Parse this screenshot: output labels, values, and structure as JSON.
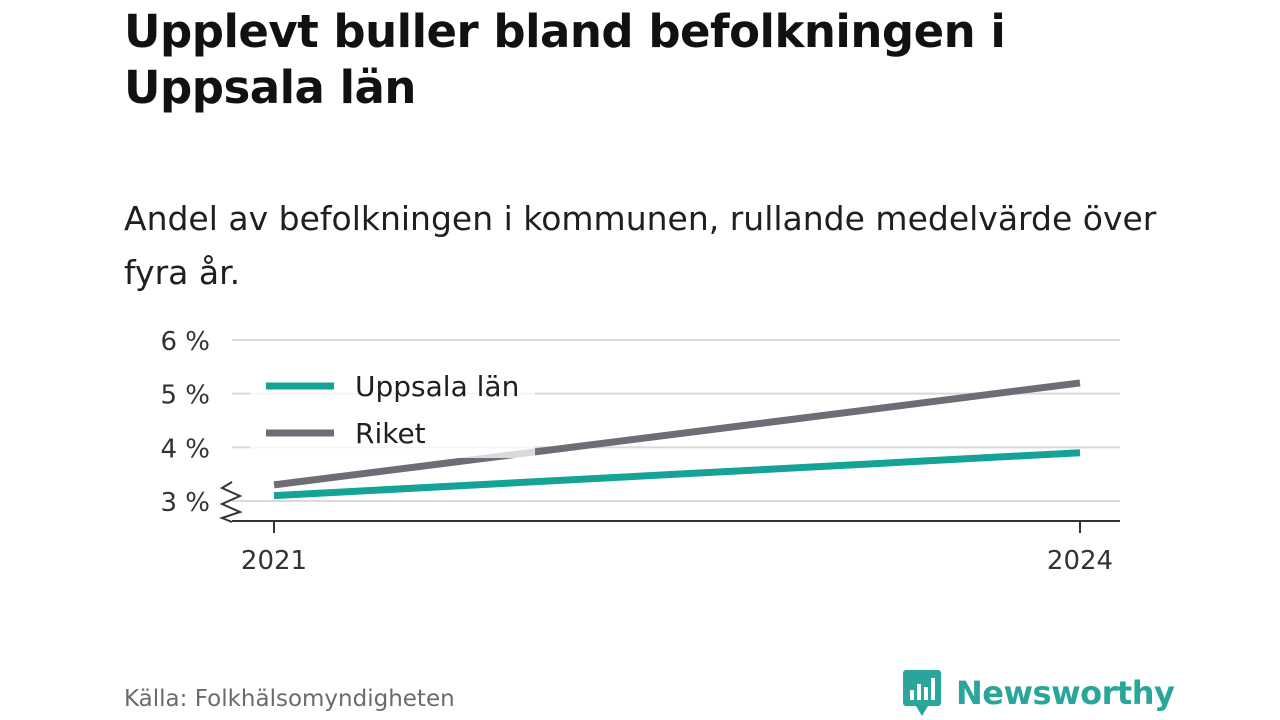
{
  "title": "Upplevt buller bland befolkningen i Uppsala län",
  "subtitle": "Andel av befolkningen i kommunen, rullande medelvärde över fyra år.",
  "source": "Källa: Folkhälsomyndigheten",
  "brand": "Newsworthy",
  "colors": {
    "uppsala": "#14a396",
    "riket": "#6e6c75",
    "grid": "#d9d9d9",
    "axis": "#333333"
  },
  "chart_data": {
    "type": "line",
    "x": [
      "2021",
      "2024"
    ],
    "series": [
      {
        "name": "Uppsala län",
        "values": [
          3.1,
          3.9
        ],
        "color": "#14a396"
      },
      {
        "name": "Riket",
        "values": [
          3.3,
          5.2
        ],
        "color": "#6e6c75"
      }
    ],
    "ylim": [
      3,
      6
    ],
    "yticks": [
      "3 %",
      "4 %",
      "5 %",
      "6 %"
    ],
    "xticks": [
      "2021",
      "2024"
    ],
    "axis_break": true,
    "legend_position": "top-left",
    "grid": true
  }
}
